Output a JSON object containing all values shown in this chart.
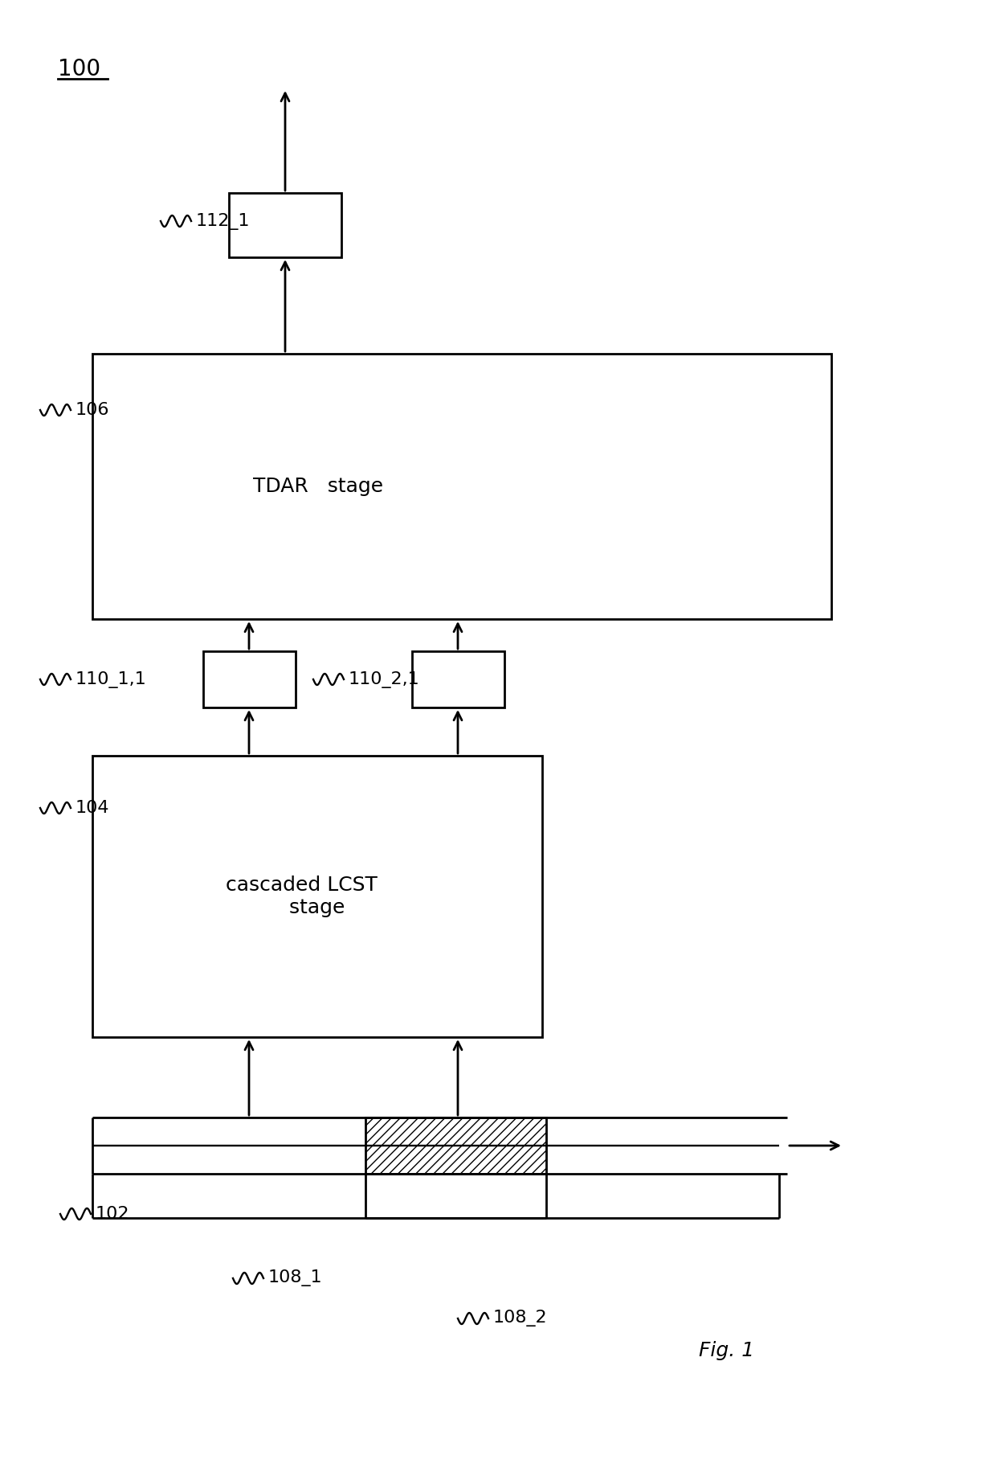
{
  "bg_color": "#ffffff",
  "line_color": "#000000",
  "label_100": "100",
  "label_102": "102",
  "label_104": "104",
  "label_106": "106",
  "label_108_1": "108_1",
  "label_108_2": "108_2",
  "label_110_1_1": "110_1,1",
  "label_110_2_1": "110_2,1",
  "label_112_1": "112_1",
  "text_tdar": "TDAR   stage",
  "text_lcst": "cascaded LCST\n     stage",
  "fig_label": "Fig. 1"
}
